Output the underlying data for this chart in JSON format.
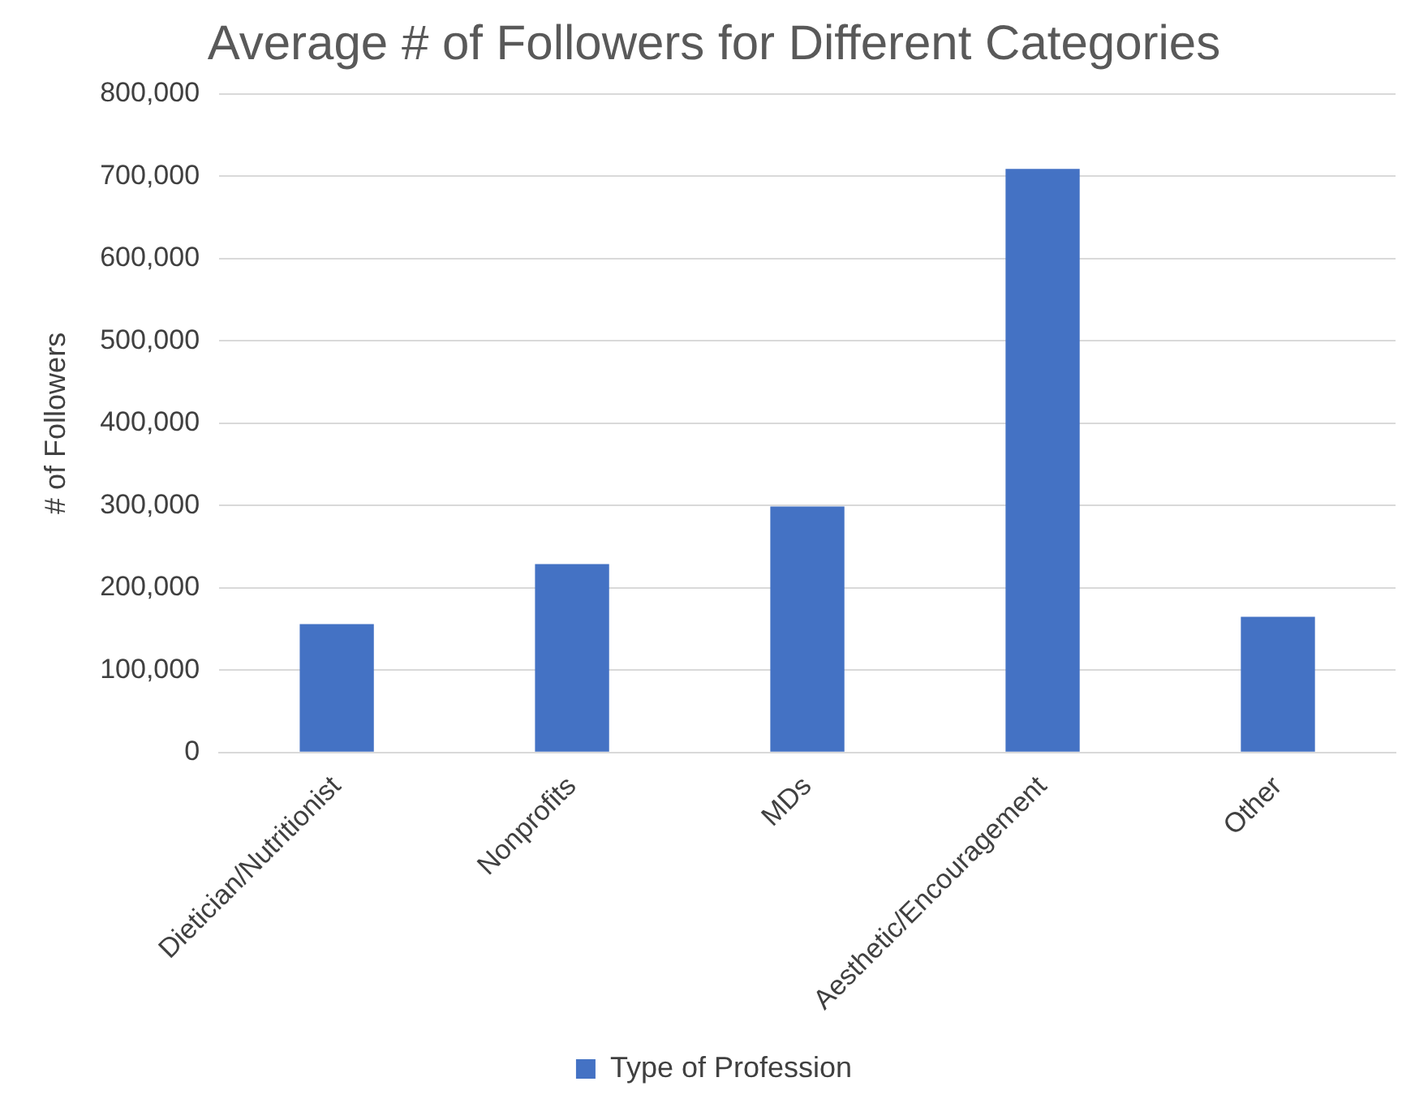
{
  "chart_data": {
    "type": "bar",
    "title": "Average # of Followers for Different Categories",
    "ylabel": "# of Followers",
    "categories": [
      "Dietician/Nutritionist",
      "Nonprofits",
      "MDs",
      "Aesthetic/Encouragement",
      "Other"
    ],
    "series": [
      {
        "name": "Type of Profession",
        "color": "#4472c4",
        "values": [
          156000,
          229000,
          299000,
          709000,
          165000
        ]
      }
    ],
    "ylim": [
      0,
      800000
    ],
    "yticks": [
      {
        "value": 0,
        "label": "0"
      },
      {
        "value": 100000,
        "label": "100,000"
      },
      {
        "value": 200000,
        "label": "200,000"
      },
      {
        "value": 300000,
        "label": "300,000"
      },
      {
        "value": 400000,
        "label": "400,000"
      },
      {
        "value": 500000,
        "label": "500,000"
      },
      {
        "value": 600000,
        "label": "600,000"
      },
      {
        "value": 700000,
        "label": "700,000"
      },
      {
        "value": 800000,
        "label": "800,000"
      }
    ],
    "grid": "y",
    "legend": "bottom"
  }
}
